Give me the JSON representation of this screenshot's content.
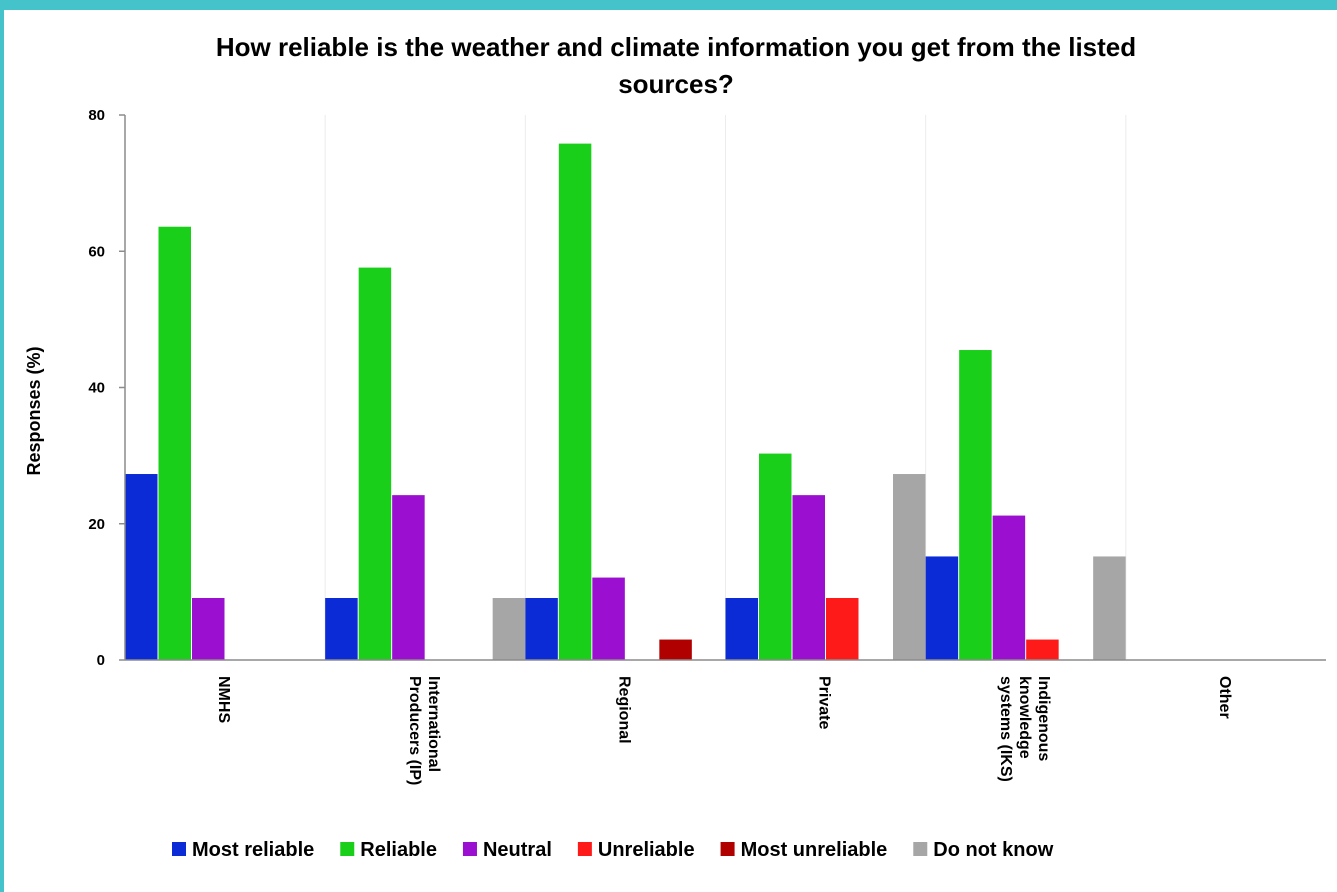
{
  "chart_data": {
    "type": "bar",
    "title": "How reliable is the weather and climate information you get from the listed sources?",
    "title_lines": [
      "How reliable is the weather and climate information you get from the listed",
      "sources?"
    ],
    "xlabel": "",
    "ylabel": "Responses (%)",
    "ylim": [
      0,
      80
    ],
    "yticks": [
      0,
      20,
      40,
      60,
      80
    ],
    "grid": false,
    "legend_position": "bottom",
    "categories": [
      "NMHS",
      "International Producers (IP)",
      "Regional",
      "Private",
      "Indigenous knowledge systems (IKS)",
      "Other"
    ],
    "category_label_lines": [
      [
        "NMHS"
      ],
      [
        "International",
        "Producers (IP)"
      ],
      [
        "Regional"
      ],
      [
        "Private"
      ],
      [
        "Indigenous",
        "knowledge",
        "systems (IKS)"
      ],
      [
        "Other"
      ]
    ],
    "series": [
      {
        "name": "Most reliable",
        "color": "#0a2bd6",
        "values": [
          27.3,
          9.1,
          9.1,
          9.1,
          15.2,
          0
        ]
      },
      {
        "name": "Reliable",
        "color": "#19cf19",
        "values": [
          63.6,
          57.6,
          75.8,
          30.3,
          45.5,
          0
        ]
      },
      {
        "name": "Neutral",
        "color": "#9a0fd0",
        "values": [
          9.1,
          24.2,
          12.1,
          24.2,
          21.2,
          0
        ]
      },
      {
        "name": "Unreliable",
        "color": "#ff1a1a",
        "values": [
          0,
          0,
          0,
          9.1,
          3.0,
          0
        ]
      },
      {
        "name": "Most unreliable",
        "color": "#b00000",
        "values": [
          0,
          0,
          3.0,
          0,
          0,
          0
        ]
      },
      {
        "name": "Do not know",
        "color": "#a6a6a6",
        "values": [
          0,
          9.1,
          0,
          27.3,
          15.2,
          0
        ]
      }
    ]
  }
}
